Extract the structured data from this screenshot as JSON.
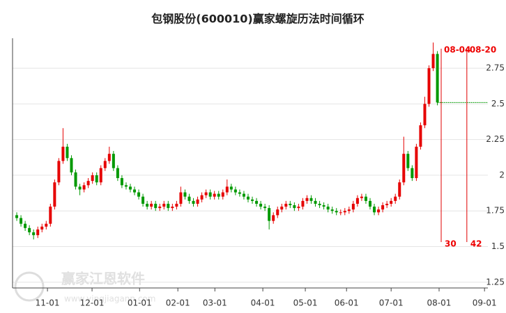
{
  "chart_data": {
    "type": "candlestick",
    "title": "包钢股份(600010)赢家螺旋历法时间循环",
    "watermark": {
      "name": "赢家江恩软件",
      "url": "www.yingjiagann.com"
    },
    "up_color": "#e60000",
    "down_color": "#009900",
    "grid": true,
    "x": [
      0,
      1,
      2,
      3,
      4,
      5,
      6,
      7,
      8,
      9,
      10,
      11,
      12,
      13,
      14,
      15,
      16,
      17,
      18,
      19,
      20,
      21,
      22,
      23,
      24,
      25,
      26,
      27,
      28,
      29,
      30,
      31,
      32,
      33,
      34,
      35,
      36,
      37,
      38,
      39,
      40,
      41,
      42,
      43,
      44,
      45,
      46,
      47,
      48,
      49,
      50,
      51,
      52,
      53,
      54,
      55,
      56,
      57,
      58,
      59,
      60,
      61,
      62,
      63,
      64,
      65,
      66,
      67,
      68,
      69,
      70,
      71,
      72,
      73,
      74,
      75,
      76,
      77,
      78,
      79,
      80,
      81,
      82,
      83,
      84,
      85,
      86,
      87,
      88,
      89,
      90,
      91,
      92,
      93,
      94,
      95,
      96,
      97,
      98,
      99,
      100
    ],
    "open": [
      1.72,
      1.7,
      1.66,
      1.63,
      1.6,
      1.58,
      1.62,
      1.64,
      1.66,
      1.78,
      1.95,
      2.1,
      2.2,
      2.12,
      2.02,
      1.92,
      1.9,
      1.93,
      1.96,
      2.0,
      1.95,
      2.05,
      2.1,
      2.15,
      2.05,
      1.98,
      1.93,
      1.92,
      1.9,
      1.88,
      1.85,
      1.8,
      1.78,
      1.8,
      1.77,
      1.78,
      1.8,
      1.77,
      1.78,
      1.8,
      1.88,
      1.85,
      1.82,
      1.8,
      1.83,
      1.86,
      1.88,
      1.85,
      1.87,
      1.85,
      1.88,
      1.92,
      1.9,
      1.88,
      1.87,
      1.85,
      1.83,
      1.82,
      1.8,
      1.78,
      1.77,
      1.68,
      1.72,
      1.76,
      1.78,
      1.8,
      1.79,
      1.77,
      1.78,
      1.82,
      1.84,
      1.82,
      1.8,
      1.79,
      1.78,
      1.76,
      1.75,
      1.74,
      1.74,
      1.75,
      1.76,
      1.8,
      1.84,
      1.85,
      1.82,
      1.78,
      1.74,
      1.76,
      1.79,
      1.8,
      1.82,
      1.85,
      1.95,
      2.15,
      2.05,
      1.98,
      2.2,
      2.35,
      2.5,
      2.75,
      2.85
    ],
    "high": [
      1.74,
      1.72,
      1.68,
      1.65,
      1.62,
      1.64,
      1.66,
      1.68,
      1.8,
      1.97,
      2.12,
      2.33,
      2.22,
      2.14,
      2.04,
      1.94,
      1.95,
      1.98,
      2.02,
      2.02,
      2.07,
      2.12,
      2.2,
      2.17,
      2.07,
      2.0,
      1.95,
      1.94,
      1.92,
      1.9,
      1.87,
      1.82,
      1.82,
      1.82,
      1.8,
      1.82,
      1.82,
      1.8,
      1.82,
      1.92,
      1.9,
      1.87,
      1.84,
      1.85,
      1.88,
      1.9,
      1.9,
      1.89,
      1.89,
      1.9,
      1.97,
      1.94,
      1.92,
      1.9,
      1.89,
      1.87,
      1.85,
      1.84,
      1.82,
      1.8,
      1.79,
      1.74,
      1.78,
      1.8,
      1.82,
      1.82,
      1.81,
      1.8,
      1.84,
      1.86,
      1.86,
      1.84,
      1.82,
      1.81,
      1.8,
      1.78,
      1.77,
      1.76,
      1.77,
      1.78,
      1.82,
      1.86,
      1.87,
      1.87,
      1.84,
      1.8,
      1.78,
      1.81,
      1.82,
      1.84,
      1.87,
      1.97,
      2.27,
      2.17,
      2.07,
      2.22,
      2.37,
      2.55,
      2.77,
      2.93,
      2.87
    ],
    "low": [
      1.68,
      1.64,
      1.61,
      1.58,
      1.55,
      1.56,
      1.6,
      1.62,
      1.64,
      1.76,
      1.93,
      2.08,
      2.1,
      2.0,
      1.9,
      1.86,
      1.88,
      1.91,
      1.94,
      1.93,
      1.93,
      2.03,
      2.08,
      2.03,
      1.96,
      1.91,
      1.9,
      1.88,
      1.86,
      1.83,
      1.78,
      1.76,
      1.76,
      1.75,
      1.75,
      1.76,
      1.75,
      1.75,
      1.76,
      1.78,
      1.83,
      1.8,
      1.78,
      1.78,
      1.81,
      1.84,
      1.83,
      1.83,
      1.83,
      1.83,
      1.86,
      1.88,
      1.86,
      1.85,
      1.83,
      1.81,
      1.8,
      1.78,
      1.76,
      1.75,
      1.62,
      1.66,
      1.7,
      1.74,
      1.76,
      1.77,
      1.75,
      1.75,
      1.76,
      1.8,
      1.8,
      1.78,
      1.77,
      1.76,
      1.74,
      1.73,
      1.72,
      1.72,
      1.72,
      1.73,
      1.74,
      1.78,
      1.82,
      1.8,
      1.76,
      1.72,
      1.72,
      1.74,
      1.77,
      1.78,
      1.8,
      1.83,
      1.93,
      2.03,
      1.96,
      1.96,
      2.18,
      2.33,
      2.48,
      2.73,
      2.49
    ],
    "close": [
      1.7,
      1.66,
      1.63,
      1.6,
      1.58,
      1.62,
      1.64,
      1.66,
      1.78,
      1.95,
      2.1,
      2.2,
      2.12,
      2.02,
      1.92,
      1.9,
      1.93,
      1.96,
      2.0,
      1.95,
      2.05,
      2.1,
      2.15,
      2.05,
      1.98,
      1.93,
      1.92,
      1.9,
      1.88,
      1.85,
      1.8,
      1.78,
      1.8,
      1.77,
      1.78,
      1.8,
      1.77,
      1.78,
      1.8,
      1.88,
      1.85,
      1.82,
      1.8,
      1.83,
      1.86,
      1.88,
      1.85,
      1.87,
      1.85,
      1.88,
      1.92,
      1.9,
      1.88,
      1.87,
      1.85,
      1.83,
      1.82,
      1.8,
      1.78,
      1.77,
      1.68,
      1.72,
      1.76,
      1.78,
      1.8,
      1.79,
      1.77,
      1.78,
      1.82,
      1.84,
      1.82,
      1.8,
      1.79,
      1.78,
      1.76,
      1.75,
      1.74,
      1.74,
      1.75,
      1.76,
      1.8,
      1.84,
      1.85,
      1.82,
      1.78,
      1.74,
      1.76,
      1.79,
      1.8,
      1.82,
      1.85,
      1.95,
      2.15,
      2.05,
      1.98,
      2.2,
      2.35,
      2.5,
      2.75,
      2.85,
      2.51
    ],
    "xlim": [
      -1,
      112
    ],
    "xticks": [
      {
        "value": 7.3,
        "label": "11-01"
      },
      {
        "value": 17.9,
        "label": "12-01"
      },
      {
        "value": 29.2,
        "label": "01-01"
      },
      {
        "value": 38.3,
        "label": "02-01"
      },
      {
        "value": 47.1,
        "label": "03-01"
      },
      {
        "value": 58.5,
        "label": "04-01"
      },
      {
        "value": 68.6,
        "label": "05-01"
      },
      {
        "value": 78.4,
        "label": "06-01"
      },
      {
        "value": 89.0,
        "label": "07-01"
      },
      {
        "value": 100.4,
        "label": "08-01"
      },
      {
        "value": 111.2,
        "label": "09-01"
      }
    ],
    "ylim": [
      1.21,
      2.96
    ],
    "yticks": [
      1.25,
      1.5,
      1.75,
      2,
      2.25,
      2.5,
      2.75
    ],
    "cycle_lines": [
      {
        "x": 100.9,
        "date": "08-04",
        "count": 30
      },
      {
        "x": 107.0,
        "date": "08-20",
        "count": 42
      }
    ],
    "cycle_color": "#e00000"
  }
}
